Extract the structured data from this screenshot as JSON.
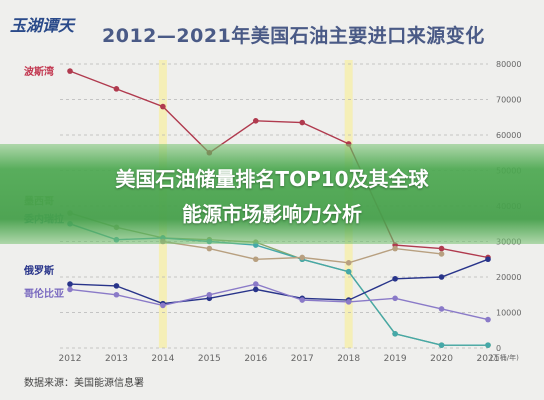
{
  "logo": {
    "text": "玉湖谭天"
  },
  "headline": {
    "line1": "美国石油储量排名TOP10及其全球",
    "line2": "能源市场影响力分析"
  },
  "source_text": "数据来源：美国能源信息署",
  "colors": {
    "background": "#efefed",
    "title": "#4a5a86",
    "banner_green": "#4ca850",
    "highlight_band": "#f4eeb4"
  },
  "chart_data": {
    "type": "line",
    "title": "2012—2021年美国石油主要进口来源变化",
    "xlabel": "",
    "ylabel": "",
    "y_unit_label": "(万桶/年)",
    "x": [
      2012,
      2013,
      2014,
      2015,
      2016,
      2017,
      2018,
      2019,
      2020,
      2021
    ],
    "ylim": [
      0,
      80000
    ],
    "yticks": [
      0,
      10000,
      20000,
      30000,
      40000,
      50000,
      60000,
      70000,
      80000
    ],
    "grid": true,
    "highlight_years": [
      2014,
      2018
    ],
    "series": [
      {
        "name": "波斯湾",
        "color": "#b03a4e",
        "values": [
          78000,
          73000,
          68000,
          55000,
          64000,
          63500,
          57500,
          29000,
          28000,
          25500
        ]
      },
      {
        "name": "墨西哥",
        "color": "#8ca86c",
        "values": [
          38000,
          34000,
          31000,
          30500,
          29800,
          25000,
          21500,
          4000,
          800,
          800
        ]
      },
      {
        "name": "委内瑞拉",
        "color": "#45a8a8",
        "values": [
          35000,
          30500,
          31000,
          30000,
          29000,
          25000,
          21500,
          4000,
          800,
          800
        ]
      },
      {
        "name": "",
        "color": "#b8a080",
        "values": [
          null,
          null,
          30000,
          28000,
          25000,
          25500,
          24000,
          28000,
          26500,
          null
        ]
      },
      {
        "name": "俄罗斯",
        "color": "#28348a",
        "values": [
          18000,
          17500,
          12500,
          14000,
          16500,
          14000,
          13500,
          19500,
          20000,
          25000
        ]
      },
      {
        "name": "哥伦比亚",
        "color": "#8a7ac8",
        "values": [
          16500,
          15000,
          12000,
          15000,
          18000,
          13500,
          13000,
          14000,
          11000,
          8000
        ]
      }
    ],
    "series_labels": [
      {
        "text": "波斯湾",
        "color": "#c2354e",
        "value": 78000
      },
      {
        "text": "墨西哥",
        "color": "#6a9a4a",
        "value": 41500
      },
      {
        "text": "委内瑞拉",
        "color": "#3a8a8a",
        "value": 36500
      },
      {
        "text": "俄罗斯",
        "color": "#28348a",
        "value": 22000
      },
      {
        "text": "哥伦比亚",
        "color": "#7a6ac0",
        "value": 15500
      }
    ]
  }
}
